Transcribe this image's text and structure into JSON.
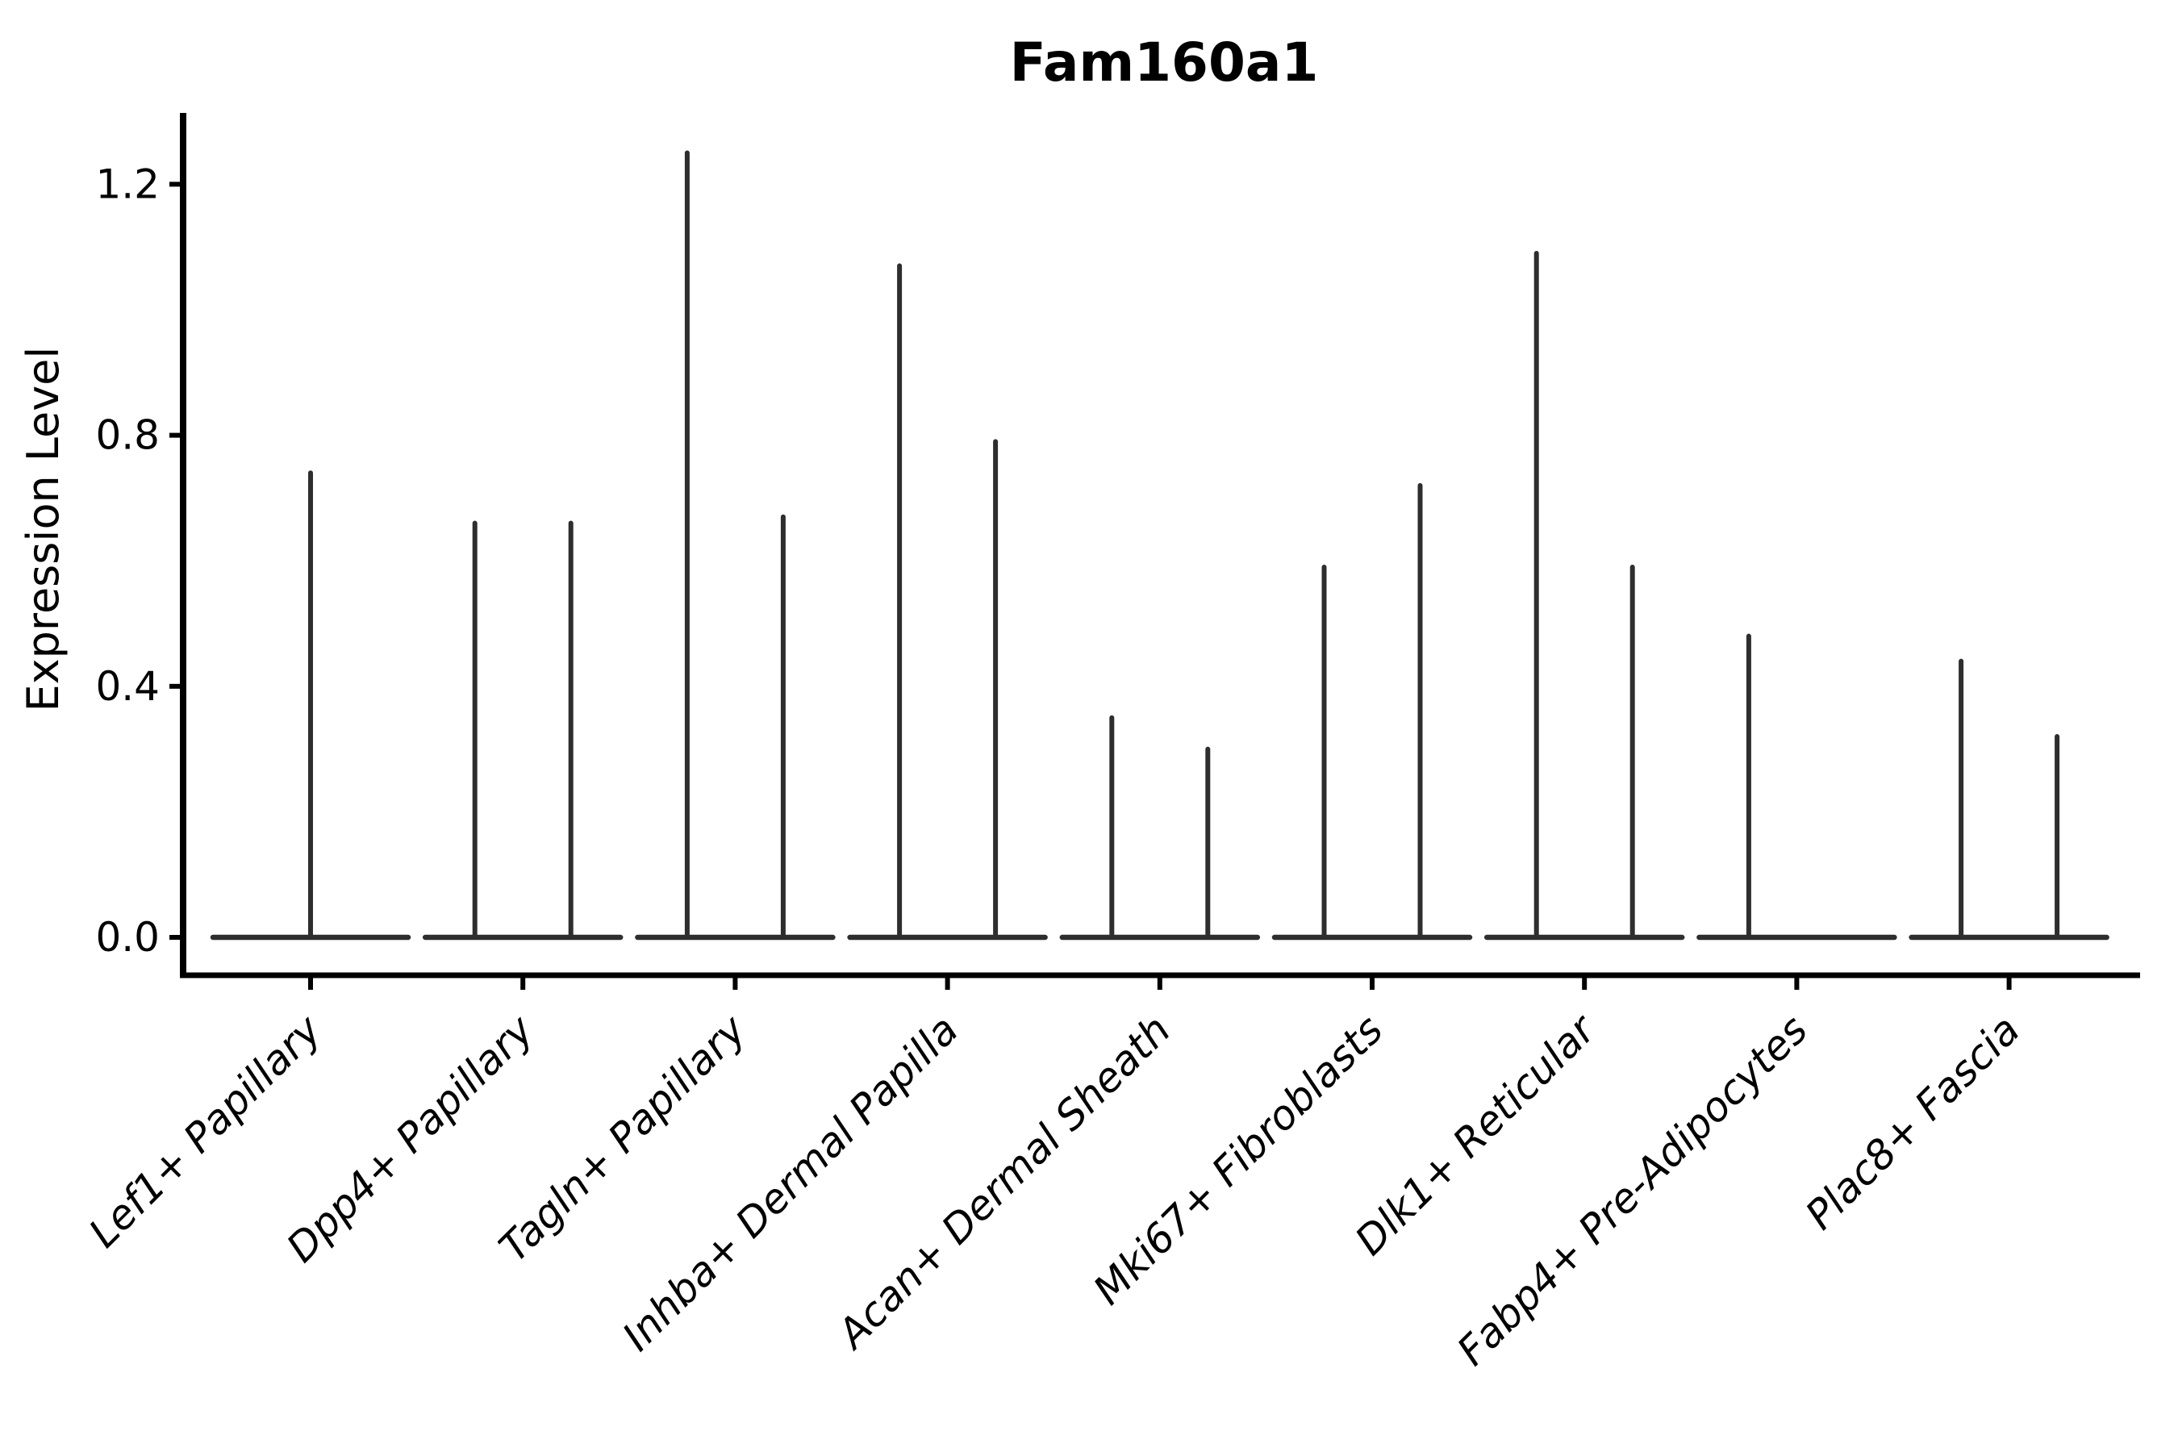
{
  "chart_data": {
    "type": "violin",
    "title": "Fam160a1",
    "ylabel": "Expression Level",
    "xlabel": "",
    "yticks": [
      0.0,
      0.4,
      0.8,
      1.2
    ],
    "ylim": [
      0,
      1.31
    ],
    "grid": false,
    "legend": null,
    "categories": [
      "Lef1+ Papillary",
      "Dpp4+ Papillary",
      "Tagln+ Papillary",
      "Inhba+ Dermal Papilla",
      "Acan+ Dermal Sheath",
      "Mki67+ Fibroblasts",
      "Dlk1+ Reticular",
      "Fabp4+ Pre-Adipocytes",
      "Plac8+ Fascia"
    ],
    "violins": [
      {
        "category": "Lef1+ Papillary",
        "baseline_value": 0,
        "spikes": [
          {
            "position": "center",
            "max": 0.74
          }
        ]
      },
      {
        "category": "Dpp4+ Papillary",
        "baseline_value": 0,
        "spikes": [
          {
            "position": "left",
            "max": 0.66
          },
          {
            "position": "right",
            "max": 0.66
          }
        ]
      },
      {
        "category": "Tagln+ Papillary",
        "baseline_value": 0,
        "spikes": [
          {
            "position": "left",
            "max": 1.25
          },
          {
            "position": "right",
            "max": 0.67
          }
        ]
      },
      {
        "category": "Inhba+ Dermal Papilla",
        "baseline_value": 0,
        "spikes": [
          {
            "position": "left",
            "max": 1.07
          },
          {
            "position": "right",
            "max": 0.79
          }
        ]
      },
      {
        "category": "Acan+ Dermal Sheath",
        "baseline_value": 0,
        "spikes": [
          {
            "position": "left",
            "max": 0.35
          },
          {
            "position": "right",
            "max": 0.3
          }
        ]
      },
      {
        "category": "Mki67+ Fibroblasts",
        "baseline_value": 0,
        "spikes": [
          {
            "position": "left",
            "max": 0.59
          },
          {
            "position": "right",
            "max": 0.72
          }
        ]
      },
      {
        "category": "Dlk1+ Reticular",
        "baseline_value": 0,
        "spikes": [
          {
            "position": "left",
            "max": 1.09
          },
          {
            "position": "right",
            "max": 0.59
          }
        ]
      },
      {
        "category": "Fabp4+ Pre-Adipocytes",
        "baseline_value": 0,
        "spikes": [
          {
            "position": "left",
            "max": 0.48
          }
        ]
      },
      {
        "category": "Plac8+ Fascia",
        "baseline_value": 0,
        "spikes": [
          {
            "position": "left",
            "max": 0.44
          },
          {
            "position": "right",
            "max": 0.32
          }
        ]
      }
    ],
    "colors": {
      "violin_line": "#2e2e2e",
      "axis": "#000000",
      "text": "#000000",
      "background": "#ffffff"
    }
  }
}
